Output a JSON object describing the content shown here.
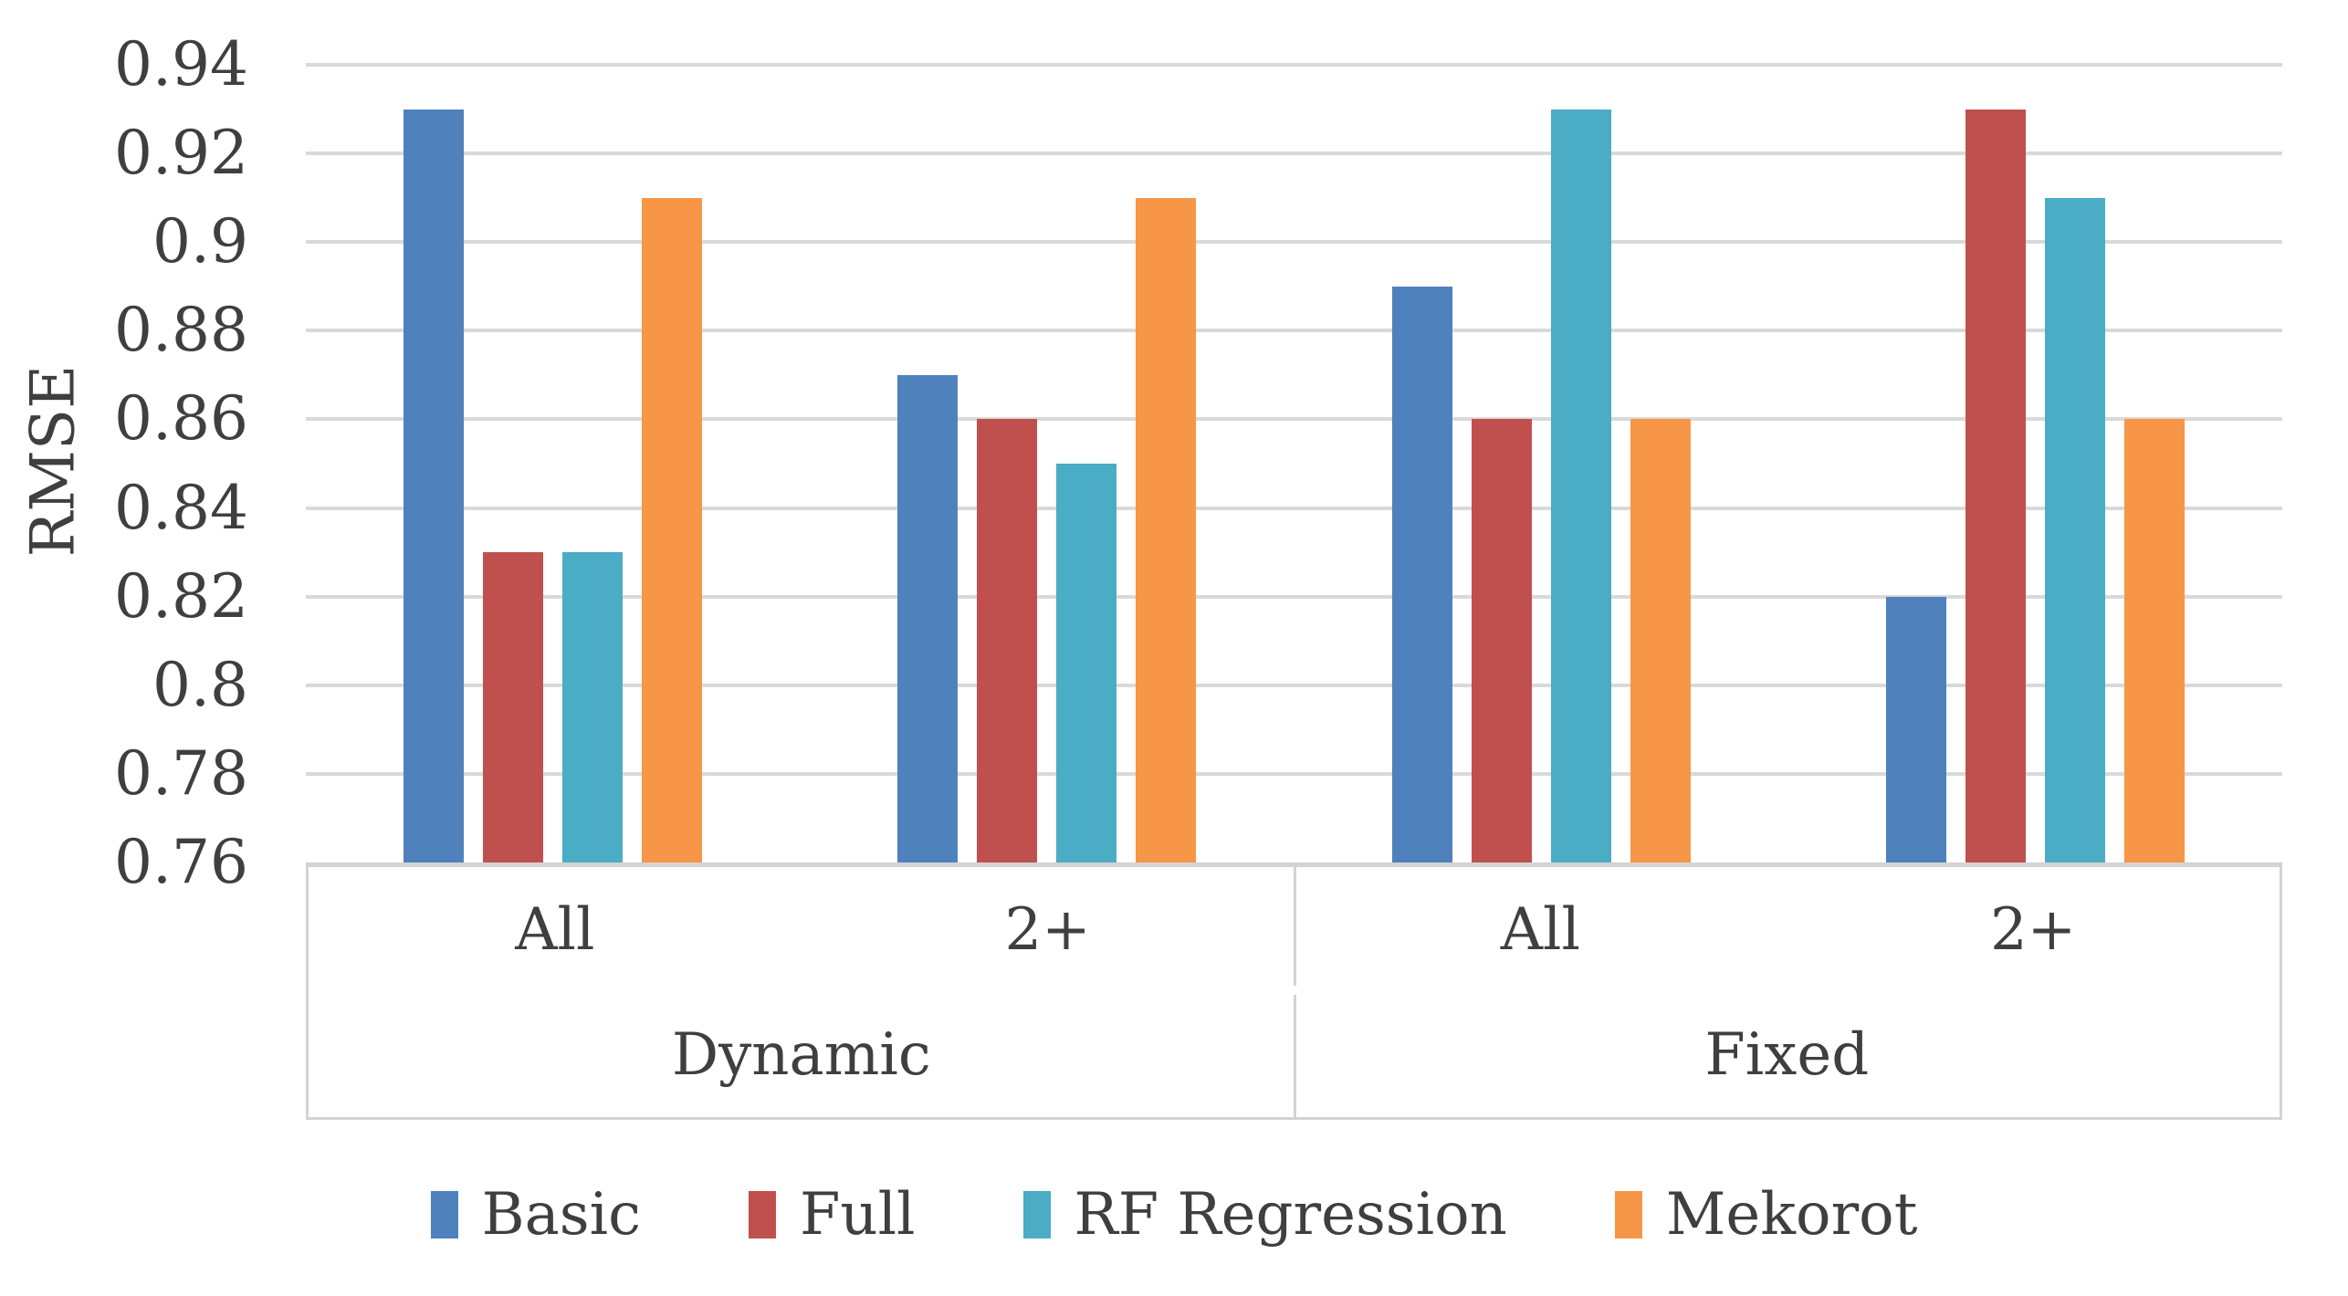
{
  "chart_data": {
    "type": "bar",
    "title": "",
    "ylabel": "RMSE",
    "xlabel": "",
    "ylim": [
      0.76,
      0.94
    ],
    "ytick_step": 0.02,
    "yticks": [
      {
        "label": "0.94",
        "value": 0.94
      },
      {
        "label": "0.92",
        "value": 0.92
      },
      {
        "label": "0.9",
        "value": 0.9
      },
      {
        "label": "0.88",
        "value": 0.88
      },
      {
        "label": "0.86",
        "value": 0.86
      },
      {
        "label": "0.84",
        "value": 0.84
      },
      {
        "label": "0.82",
        "value": 0.82
      },
      {
        "label": "0.8",
        "value": 0.8
      },
      {
        "label": "0.78",
        "value": 0.78
      },
      {
        "label": "0.76",
        "value": 0.76
      }
    ],
    "categories": [
      {
        "group": "Dynamic",
        "label": "All"
      },
      {
        "group": "Dynamic",
        "label": "2+"
      },
      {
        "group": "Fixed",
        "label": "All"
      },
      {
        "group": "Fixed",
        "label": "2+"
      }
    ],
    "group_labels": [
      "Dynamic",
      "Fixed"
    ],
    "series": [
      {
        "name": "Basic",
        "color": "#4F81BD",
        "values": [
          0.93,
          0.87,
          0.89,
          0.82
        ]
      },
      {
        "name": "Full",
        "color": "#C0504D",
        "values": [
          0.83,
          0.86,
          0.86,
          0.93
        ]
      },
      {
        "name": "RF Regression",
        "color": "#4BACC6",
        "values": [
          0.83,
          0.85,
          0.93,
          0.91
        ]
      },
      {
        "name": "Mekorot",
        "color": "#F79646",
        "values": [
          0.91,
          0.91,
          0.86,
          0.86
        ]
      }
    ],
    "legend_position": "bottom",
    "grid": true,
    "grid_color": "#D9D9D9",
    "axis_color": "#D3D3D3",
    "text_color": "#3F3F3F"
  }
}
